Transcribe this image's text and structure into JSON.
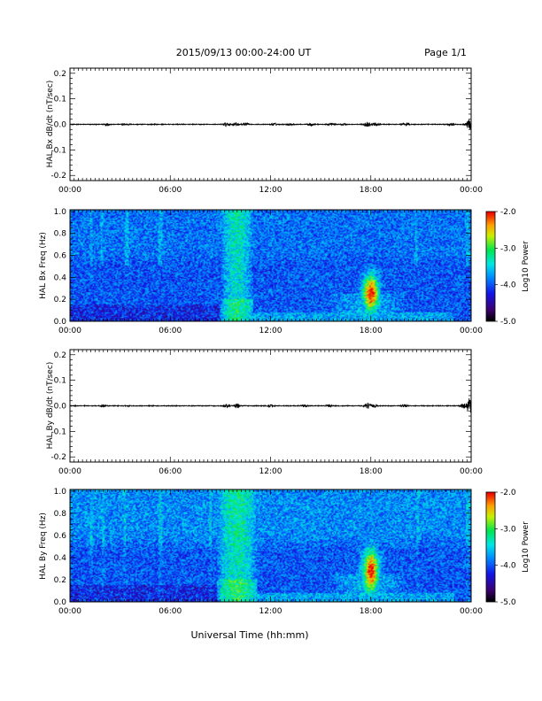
{
  "header": {
    "title": "2015/09/13  00:00-24:00 UT",
    "page": "Page 1/1"
  },
  "xlabel": "Universal Time (hh:mm)",
  "xticks": [
    "00:00",
    "06:00",
    "12:00",
    "18:00",
    "00:00"
  ],
  "chart_data": [
    {
      "type": "line",
      "ylabel": "HAL Bx dB/dt (nT/sec)",
      "x_range_hours": [
        0,
        24
      ],
      "ylim": [
        -0.22,
        0.22
      ],
      "yticks": [
        "-0.2",
        "-0.1",
        "0.0",
        "0.1",
        "0.2"
      ],
      "bursts": [
        {
          "t": 2.2,
          "amp": 0.004
        },
        {
          "t": 3.4,
          "amp": 0.003
        },
        {
          "t": 9.3,
          "amp": 0.006
        },
        {
          "t": 9.9,
          "amp": 0.007
        },
        {
          "t": 10.5,
          "amp": 0.005
        },
        {
          "t": 12.2,
          "amp": 0.004
        },
        {
          "t": 13.1,
          "amp": 0.004
        },
        {
          "t": 14.4,
          "amp": 0.005
        },
        {
          "t": 15.6,
          "amp": 0.005
        },
        {
          "t": 16.4,
          "amp": 0.004
        },
        {
          "t": 17.8,
          "amp": 0.011
        },
        {
          "t": 18.3,
          "amp": 0.006
        },
        {
          "t": 20.1,
          "amp": 0.004
        },
        {
          "t": 22.8,
          "amp": 0.005
        },
        {
          "t": 23.9,
          "amp": 0.02
        }
      ]
    },
    {
      "type": "heatmap",
      "ylabel": "HAL Bx Freq (Hz)",
      "ylim": [
        0.0,
        1.0
      ],
      "yticks": [
        "0.0",
        "0.2",
        "0.4",
        "0.6",
        "0.8",
        "1.0"
      ],
      "colorbar": {
        "label": "Log10 Power",
        "ticks": [
          "-2.0",
          "-3.0",
          "-4.0",
          "-5.0"
        ],
        "range": [
          -5.0,
          -2.0
        ]
      },
      "features": {
        "broadband_columns_hours": [
          1.3,
          1.9,
          3.4,
          5.4,
          10.0,
          20.7,
          23.8
        ],
        "broadband_column_level": -4.0,
        "main_burst_hours": [
          9.0,
          11.0
        ],
        "main_burst_level": -3.4,
        "pc_event_hour": 18.0,
        "pc_event_freq_hz": [
          0.1,
          0.4
        ],
        "pc_event_peak_log_power": -2.0,
        "background_low_freq_level": -4.7,
        "background_high_freq_level": -3.9
      }
    },
    {
      "type": "line",
      "ylabel": "HAL By dB/dt (nT/sec)",
      "x_range_hours": [
        0,
        24
      ],
      "ylim": [
        -0.22,
        0.22
      ],
      "yticks": [
        "-0.2",
        "-0.1",
        "0.0",
        "0.1",
        "0.2"
      ],
      "bursts": [
        {
          "t": 2.0,
          "amp": 0.004
        },
        {
          "t": 3.5,
          "amp": 0.003
        },
        {
          "t": 9.4,
          "amp": 0.006
        },
        {
          "t": 10.0,
          "amp": 0.007
        },
        {
          "t": 12.0,
          "amp": 0.004
        },
        {
          "t": 14.0,
          "amp": 0.005
        },
        {
          "t": 15.5,
          "amp": 0.004
        },
        {
          "t": 17.8,
          "amp": 0.013
        },
        {
          "t": 18.2,
          "amp": 0.006
        },
        {
          "t": 20.0,
          "amp": 0.004
        },
        {
          "t": 23.5,
          "amp": 0.009
        },
        {
          "t": 23.9,
          "amp": 0.035
        }
      ]
    },
    {
      "type": "heatmap",
      "ylabel": "HAL By Freq (Hz)",
      "ylim": [
        0.0,
        1.0
      ],
      "yticks": [
        "0.0",
        "0.2",
        "0.4",
        "0.6",
        "0.8",
        "1.0"
      ],
      "colorbar": {
        "label": "Log10 Power",
        "ticks": [
          "-2.0",
          "-3.0",
          "-4.0",
          "-5.0"
        ],
        "range": [
          -5.0,
          -2.0
        ]
      },
      "features": {
        "broadband_columns_hours": [
          1.3,
          2.0,
          3.3,
          5.4,
          8.4,
          10.0,
          20.8,
          23.8
        ],
        "broadband_column_level": -3.9,
        "main_burst_hours": [
          8.8,
          11.2
        ],
        "main_burst_level": -3.3,
        "pc_event_hour": 18.0,
        "pc_event_freq_hz": [
          0.1,
          0.45
        ],
        "pc_event_peak_log_power": -2.0,
        "background_low_freq_level": -4.6,
        "background_high_freq_level": -3.8
      }
    }
  ]
}
